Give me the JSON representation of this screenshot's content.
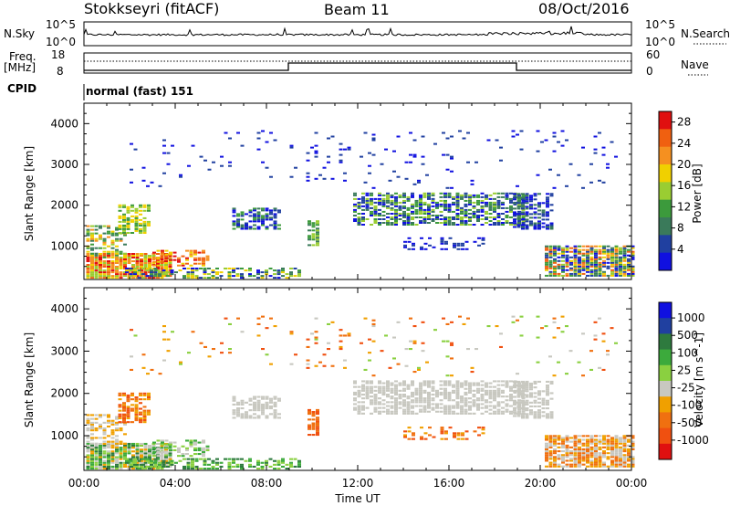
{
  "header": {
    "station": "Stokkseyri (fitACF)",
    "beam": "Beam 11",
    "date": "08/Oct/2016"
  },
  "top_panels": {
    "nsky_label": "N.Sky",
    "nsky_ticks": [
      "10^5",
      "10^0"
    ],
    "nsearch_label": "N.Search",
    "nsearch_ticks": [
      "10^5",
      "10^0"
    ],
    "freq_label_line1": "Freq.",
    "freq_label_line2": "[MHz]",
    "freq_ticks": [
      "18",
      "8"
    ],
    "nave_label": "Nave",
    "nave_ticks": [
      "60",
      "0"
    ],
    "cpid_label": "CPID",
    "cpid_value": "normal (fast) 151"
  },
  "colors": {
    "power_scale": [
      "#1010e0",
      "#2040a0",
      "#3a7a5a",
      "#3c9a3c",
      "#9acd32",
      "#f0d000",
      "#f59020",
      "#f06010",
      "#e01010"
    ],
    "velocity_scale": [
      "#1010e0",
      "#2040a0",
      "#2e7a3e",
      "#3caa3c",
      "#8ad040",
      "#c8c8c0",
      "#f0a000",
      "#f07010",
      "#f05010",
      "#e01010"
    ]
  },
  "chart_data": [
    {
      "type": "heatmap",
      "name": "power",
      "ylabel": "Slant Range [km]",
      "ylim": [
        180,
        4500
      ],
      "yticks": [
        "1000",
        "2000",
        "3000",
        "4000"
      ],
      "xlim_hours": [
        0,
        24
      ],
      "colorbar_label": "Power [dB]",
      "colorbar_ticks": [
        "4",
        "8",
        "12",
        "16",
        "20",
        "24",
        "28"
      ],
      "colorbar_range": [
        0,
        30
      ]
    },
    {
      "type": "heatmap",
      "name": "velocity",
      "ylabel": "Slant Range [km]",
      "ylim": [
        180,
        4500
      ],
      "yticks": [
        "1000",
        "2000",
        "3000",
        "4000"
      ],
      "xlim_hours": [
        0,
        24
      ],
      "xticks": [
        "00:00",
        "04:00",
        "08:00",
        "12:00",
        "16:00",
        "20:00",
        "00:00"
      ],
      "xlabel": "Time UT",
      "colorbar_label": "Velocity [m s^-1]",
      "colorbar_ticks": [
        "1000",
        "500",
        "100",
        "25",
        "-25",
        "-100",
        "-500",
        "-1000"
      ]
    }
  ]
}
